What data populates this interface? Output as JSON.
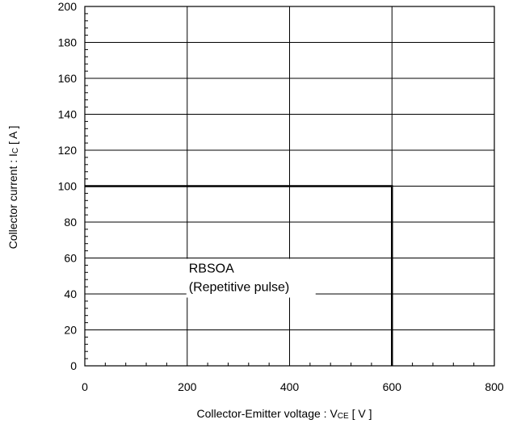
{
  "chart_data": {
    "type": "line",
    "title": "",
    "xlabel": {
      "main": "Collector-Emitter voltage  :  V",
      "sub": "CE",
      "unit": " [ V ]"
    },
    "ylabel": {
      "main": "Collector current : I",
      "sub": "C",
      "unit": " [ A ]"
    },
    "xlim": [
      0,
      800
    ],
    "ylim": [
      0,
      200
    ],
    "x_ticks": [
      0,
      200,
      400,
      600,
      800
    ],
    "y_ticks": [
      0,
      20,
      40,
      60,
      80,
      100,
      120,
      140,
      160,
      180,
      200
    ],
    "x_tick_labels": [
      "0",
      "200",
      "400",
      "600",
      "800"
    ],
    "y_tick_labels": [
      "0",
      "20",
      "40",
      "60",
      "80",
      "100",
      "120",
      "140",
      "160",
      "180",
      "200"
    ],
    "grid": true,
    "series": [
      {
        "x": [
          0,
          600,
          600
        ],
        "y": [
          100,
          100,
          0
        ],
        "color": "#000000"
      }
    ],
    "annotations": [
      {
        "lines": [
          "RBSOA",
          "(Repetitive pulse)"
        ],
        "x": 200,
        "y": 60
      }
    ]
  }
}
